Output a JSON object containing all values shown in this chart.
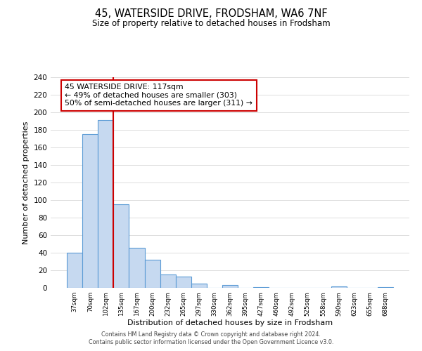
{
  "title": "45, WATERSIDE DRIVE, FRODSHAM, WA6 7NF",
  "subtitle": "Size of property relative to detached houses in Frodsham",
  "xlabel": "Distribution of detached houses by size in Frodsham",
  "ylabel": "Number of detached properties",
  "bar_values": [
    40,
    175,
    191,
    95,
    46,
    32,
    15,
    13,
    5,
    0,
    3,
    0,
    1,
    0,
    0,
    0,
    0,
    2,
    0,
    0,
    1
  ],
  "x_labels": [
    "37sqm",
    "70sqm",
    "102sqm",
    "135sqm",
    "167sqm",
    "200sqm",
    "232sqm",
    "265sqm",
    "297sqm",
    "330sqm",
    "362sqm",
    "395sqm",
    "427sqm",
    "460sqm",
    "492sqm",
    "525sqm",
    "558sqm",
    "590sqm",
    "623sqm",
    "655sqm",
    "688sqm"
  ],
  "bar_color": "#c6d9f0",
  "bar_edge_color": "#5b9bd5",
  "vline_index": 2,
  "vline_color": "#cc0000",
  "annotation_text": "45 WATERSIDE DRIVE: 117sqm\n← 49% of detached houses are smaller (303)\n50% of semi-detached houses are larger (311) →",
  "annotation_box_color": "#ffffff",
  "annotation_box_edge": "#cc0000",
  "ylim": [
    0,
    240
  ],
  "yticks": [
    0,
    20,
    40,
    60,
    80,
    100,
    120,
    140,
    160,
    180,
    200,
    220,
    240
  ],
  "footer_line1": "Contains HM Land Registry data © Crown copyright and database right 2024.",
  "footer_line2": "Contains public sector information licensed under the Open Government Licence v3.0.",
  "background_color": "#ffffff",
  "grid_color": "#dddddd"
}
